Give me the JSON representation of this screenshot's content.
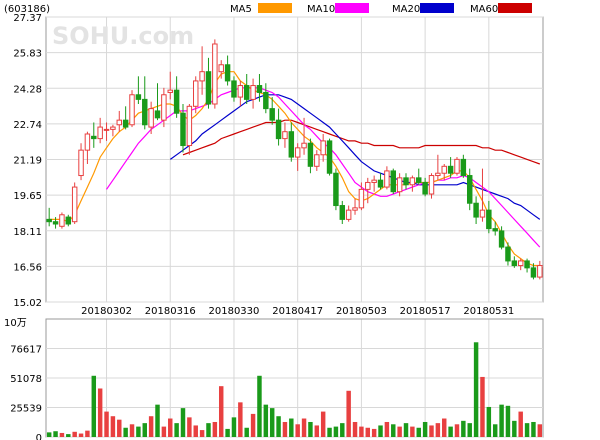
{
  "header": {
    "code": "(603186)",
    "watermark": "SOHU.com"
  },
  "legend": [
    {
      "name": "MA5",
      "color": "#ff9900"
    },
    {
      "name": "MA10",
      "color": "#ff00ff"
    },
    {
      "name": "MA20",
      "color": "#0000cc"
    },
    {
      "name": "MA60",
      "color": "#cc0000"
    }
  ],
  "colors": {
    "up": "#e84040",
    "down": "#1a9a1a",
    "grid": "#d8d8d8",
    "axis": "#000000"
  },
  "chart_data": [
    {
      "type": "candlestick",
      "ylim": [
        15.02,
        27.37
      ],
      "y_ticks": [
        "27.37",
        "25.83",
        "24.28",
        "22.74",
        "21.19",
        "19.65",
        "18.11",
        "16.56",
        "15.02"
      ],
      "x_ticks": [
        {
          "label": "20180302",
          "index": 9
        },
        {
          "label": "20180316",
          "index": 19
        },
        {
          "label": "20180330",
          "index": 29
        },
        {
          "label": "20180417",
          "index": 39
        },
        {
          "label": "20180503",
          "index": 49
        },
        {
          "label": "20180517",
          "index": 59
        },
        {
          "label": "20180531",
          "index": 69
        }
      ],
      "ohlc": [
        [
          18.6,
          19.1,
          18.3,
          18.5
        ],
        [
          18.5,
          18.7,
          18.2,
          18.4
        ],
        [
          18.3,
          18.9,
          18.2,
          18.8
        ],
        [
          18.7,
          18.8,
          18.3,
          18.4
        ],
        [
          18.5,
          20.2,
          18.4,
          20.0
        ],
        [
          20.5,
          21.9,
          20.3,
          21.6
        ],
        [
          21.6,
          22.4,
          21.0,
          22.3
        ],
        [
          22.2,
          22.8,
          21.7,
          22.1
        ],
        [
          22.1,
          23.0,
          21.9,
          22.6
        ],
        [
          22.5,
          22.8,
          22.0,
          22.5
        ],
        [
          22.5,
          22.7,
          22.2,
          22.6
        ],
        [
          22.7,
          23.3,
          22.4,
          22.9
        ],
        [
          22.9,
          23.5,
          22.5,
          22.6
        ],
        [
          22.7,
          24.2,
          22.6,
          24.0
        ],
        [
          24.0,
          24.8,
          23.6,
          23.8
        ],
        [
          23.8,
          24.8,
          22.5,
          22.7
        ],
        [
          22.6,
          23.7,
          22.3,
          23.4
        ],
        [
          23.3,
          24.5,
          22.9,
          23.0
        ],
        [
          22.9,
          24.3,
          22.6,
          24.0
        ],
        [
          24.1,
          25.0,
          23.8,
          24.2
        ],
        [
          24.2,
          24.8,
          23.0,
          23.2
        ],
        [
          23.2,
          23.6,
          21.5,
          21.8
        ],
        [
          21.8,
          23.6,
          21.4,
          23.5
        ],
        [
          23.5,
          24.8,
          23.2,
          24.6
        ],
        [
          24.6,
          26.1,
          24.0,
          25.0
        ],
        [
          25.0,
          25.6,
          23.4,
          23.6
        ],
        [
          23.6,
          26.4,
          23.4,
          26.2
        ],
        [
          25.0,
          25.5,
          24.7,
          25.3
        ],
        [
          25.3,
          25.7,
          24.4,
          24.6
        ],
        [
          24.6,
          24.8,
          23.7,
          23.9
        ],
        [
          23.9,
          24.6,
          23.5,
          24.4
        ],
        [
          24.4,
          24.9,
          23.6,
          23.8
        ],
        [
          23.8,
          24.7,
          23.4,
          24.4
        ],
        [
          24.4,
          24.9,
          23.7,
          24.1
        ],
        [
          24.1,
          24.5,
          23.2,
          23.4
        ],
        [
          23.4,
          23.9,
          22.7,
          22.9
        ],
        [
          22.9,
          23.4,
          21.8,
          22.1
        ],
        [
          22.1,
          22.8,
          21.7,
          22.4
        ],
        [
          22.4,
          22.8,
          21.1,
          21.3
        ],
        [
          21.3,
          21.9,
          20.7,
          21.7
        ],
        [
          21.7,
          23.0,
          21.4,
          21.9
        ],
        [
          21.9,
          22.1,
          20.6,
          20.9
        ],
        [
          20.9,
          21.6,
          20.7,
          21.4
        ],
        [
          21.4,
          22.3,
          21.1,
          22.0
        ],
        [
          22.0,
          22.1,
          20.5,
          20.6
        ],
        [
          20.6,
          20.8,
          19.0,
          19.2
        ],
        [
          19.2,
          19.4,
          18.4,
          18.6
        ],
        [
          18.6,
          19.2,
          18.5,
          19.0
        ],
        [
          19.0,
          19.5,
          18.8,
          19.1
        ],
        [
          19.1,
          20.2,
          19.0,
          19.9
        ],
        [
          19.9,
          20.4,
          19.3,
          20.2
        ],
        [
          20.2,
          20.5,
          19.8,
          20.3
        ],
        [
          20.3,
          20.6,
          19.9,
          20.0
        ],
        [
          20.0,
          20.9,
          19.9,
          20.7
        ],
        [
          20.7,
          20.8,
          19.7,
          19.8
        ],
        [
          19.8,
          20.6,
          19.6,
          20.4
        ],
        [
          20.4,
          20.6,
          19.9,
          20.1
        ],
        [
          20.1,
          20.5,
          19.8,
          20.4
        ],
        [
          20.4,
          20.8,
          20.1,
          20.2
        ],
        [
          20.2,
          20.4,
          19.6,
          19.7
        ],
        [
          19.7,
          20.6,
          19.5,
          20.5
        ],
        [
          20.5,
          21.4,
          20.3,
          20.6
        ],
        [
          20.6,
          21.0,
          20.3,
          20.9
        ],
        [
          20.9,
          21.3,
          20.4,
          20.6
        ],
        [
          20.6,
          21.3,
          20.5,
          21.2
        ],
        [
          21.2,
          21.4,
          20.4,
          20.5
        ],
        [
          20.5,
          20.8,
          19.0,
          19.3
        ],
        [
          19.3,
          19.6,
          18.4,
          18.7
        ],
        [
          18.7,
          20.8,
          18.5,
          19.0
        ],
        [
          19.0,
          19.4,
          18.0,
          18.2
        ],
        [
          18.2,
          18.5,
          17.9,
          18.1
        ],
        [
          18.1,
          18.3,
          17.3,
          17.4
        ],
        [
          17.4,
          17.6,
          16.6,
          16.8
        ],
        [
          16.8,
          17.0,
          16.5,
          16.6
        ],
        [
          16.6,
          16.9,
          16.4,
          16.8
        ],
        [
          16.8,
          16.9,
          16.3,
          16.5
        ],
        [
          16.5,
          16.7,
          16.0,
          16.1
        ],
        [
          16.1,
          16.8,
          16.0,
          16.6
        ]
      ],
      "ma5": [
        18.6,
        18.6,
        18.6,
        18.5,
        18.8,
        19.4,
        20.0,
        20.6,
        21.3,
        21.7,
        22.1,
        22.4,
        22.6,
        22.9,
        23.2,
        23.3,
        23.4,
        23.5,
        23.6,
        23.6,
        23.5,
        23.1,
        22.9,
        23.1,
        23.4,
        23.8,
        24.5,
        24.9,
        25.0,
        25.0,
        24.6,
        24.4,
        24.2,
        24.1,
        24.0,
        23.8,
        23.5,
        23.2,
        22.8,
        22.5,
        22.2,
        22.0,
        21.7,
        21.5,
        21.3,
        20.9,
        20.4,
        19.8,
        19.5,
        19.4,
        19.5,
        19.7,
        19.9,
        20.1,
        20.1,
        20.1,
        20.1,
        20.2,
        20.2,
        20.2,
        20.2,
        20.3,
        20.4,
        20.5,
        20.7,
        20.7,
        20.4,
        19.9,
        19.4,
        18.8,
        18.5,
        18.0,
        17.5,
        17.1,
        16.9,
        16.7,
        16.6,
        16.6
      ],
      "ma10": [
        null,
        null,
        null,
        null,
        null,
        null,
        null,
        null,
        null,
        19.9,
        20.3,
        20.7,
        21.1,
        21.5,
        21.9,
        22.2,
        22.5,
        22.7,
        22.9,
        23.1,
        23.3,
        23.3,
        23.3,
        23.4,
        23.5,
        23.6,
        23.8,
        24.0,
        24.1,
        24.2,
        24.3,
        24.3,
        24.3,
        24.3,
        24.2,
        24.1,
        23.9,
        23.6,
        23.3,
        23.0,
        22.7,
        22.5,
        22.2,
        21.9,
        21.7,
        21.4,
        21.0,
        20.6,
        20.2,
        20.0,
        19.8,
        19.7,
        19.6,
        19.6,
        19.7,
        19.8,
        19.9,
        20.0,
        20.1,
        20.2,
        20.2,
        20.3,
        20.3,
        20.4,
        20.4,
        20.5,
        20.4,
        20.2,
        20.0,
        19.8,
        19.5,
        19.2,
        18.9,
        18.6,
        18.3,
        18.0,
        17.7,
        17.4
      ],
      "ma20": [
        null,
        null,
        null,
        null,
        null,
        null,
        null,
        null,
        null,
        null,
        null,
        null,
        null,
        null,
        null,
        null,
        null,
        null,
        null,
        21.2,
        21.4,
        21.6,
        21.8,
        22.0,
        22.3,
        22.5,
        22.7,
        22.9,
        23.1,
        23.3,
        23.5,
        23.7,
        23.8,
        23.9,
        24.0,
        24.0,
        24.0,
        23.9,
        23.8,
        23.6,
        23.4,
        23.2,
        23.0,
        22.8,
        22.6,
        22.3,
        22.0,
        21.7,
        21.4,
        21.1,
        20.9,
        20.7,
        20.6,
        20.5,
        20.4,
        20.3,
        20.2,
        20.2,
        20.1,
        20.1,
        20.1,
        20.1,
        20.1,
        20.1,
        20.1,
        20.2,
        20.1,
        20.0,
        19.9,
        19.8,
        19.7,
        19.6,
        19.5,
        19.3,
        19.2,
        19.0,
        18.8,
        18.6
      ],
      "ma60": [
        null,
        null,
        null,
        null,
        null,
        null,
        null,
        null,
        null,
        null,
        null,
        null,
        null,
        null,
        null,
        null,
        null,
        null,
        null,
        null,
        null,
        21.4,
        21.5,
        21.6,
        21.7,
        21.8,
        21.9,
        22.1,
        22.2,
        22.3,
        22.4,
        22.5,
        22.6,
        22.7,
        22.8,
        22.8,
        22.8,
        22.9,
        22.9,
        22.8,
        22.7,
        22.6,
        22.5,
        22.4,
        22.3,
        22.2,
        22.1,
        22.0,
        22.0,
        21.9,
        21.9,
        21.8,
        21.8,
        21.8,
        21.8,
        21.7,
        21.7,
        21.7,
        21.7,
        21.8,
        21.8,
        21.8,
        21.8,
        21.8,
        21.8,
        21.8,
        21.8,
        21.8,
        21.7,
        21.7,
        21.6,
        21.6,
        21.5,
        21.4,
        21.3,
        21.2,
        21.1,
        21.0
      ]
    },
    {
      "type": "bar",
      "unit": "10万",
      "ylim": [
        0,
        102155
      ],
      "y_ticks": [
        "76617",
        "51078",
        "25539",
        "0"
      ],
      "values": [
        4000,
        5000,
        3500,
        2500,
        4500,
        3000,
        5500,
        53000,
        42000,
        22000,
        18000,
        15000,
        8000,
        11000,
        9000,
        12000,
        18000,
        28000,
        9000,
        16000,
        12000,
        25000,
        17000,
        10000,
        6000,
        12000,
        13000,
        44000,
        7000,
        17000,
        30000,
        8000,
        20000,
        53000,
        28000,
        25000,
        18000,
        13000,
        16000,
        11000,
        16000,
        13000,
        10000,
        22000,
        8000,
        9000,
        12000,
        40000,
        13000,
        9000,
        8000,
        7000,
        10000,
        13000,
        11000,
        9000,
        12000,
        9000,
        8000,
        13000,
        10000,
        12000,
        16000,
        9000,
        11000,
        14000,
        12000,
        82000,
        52000,
        26000,
        11000,
        28000,
        27000,
        14000,
        22000,
        12000,
        13000,
        11000
      ]
    }
  ]
}
